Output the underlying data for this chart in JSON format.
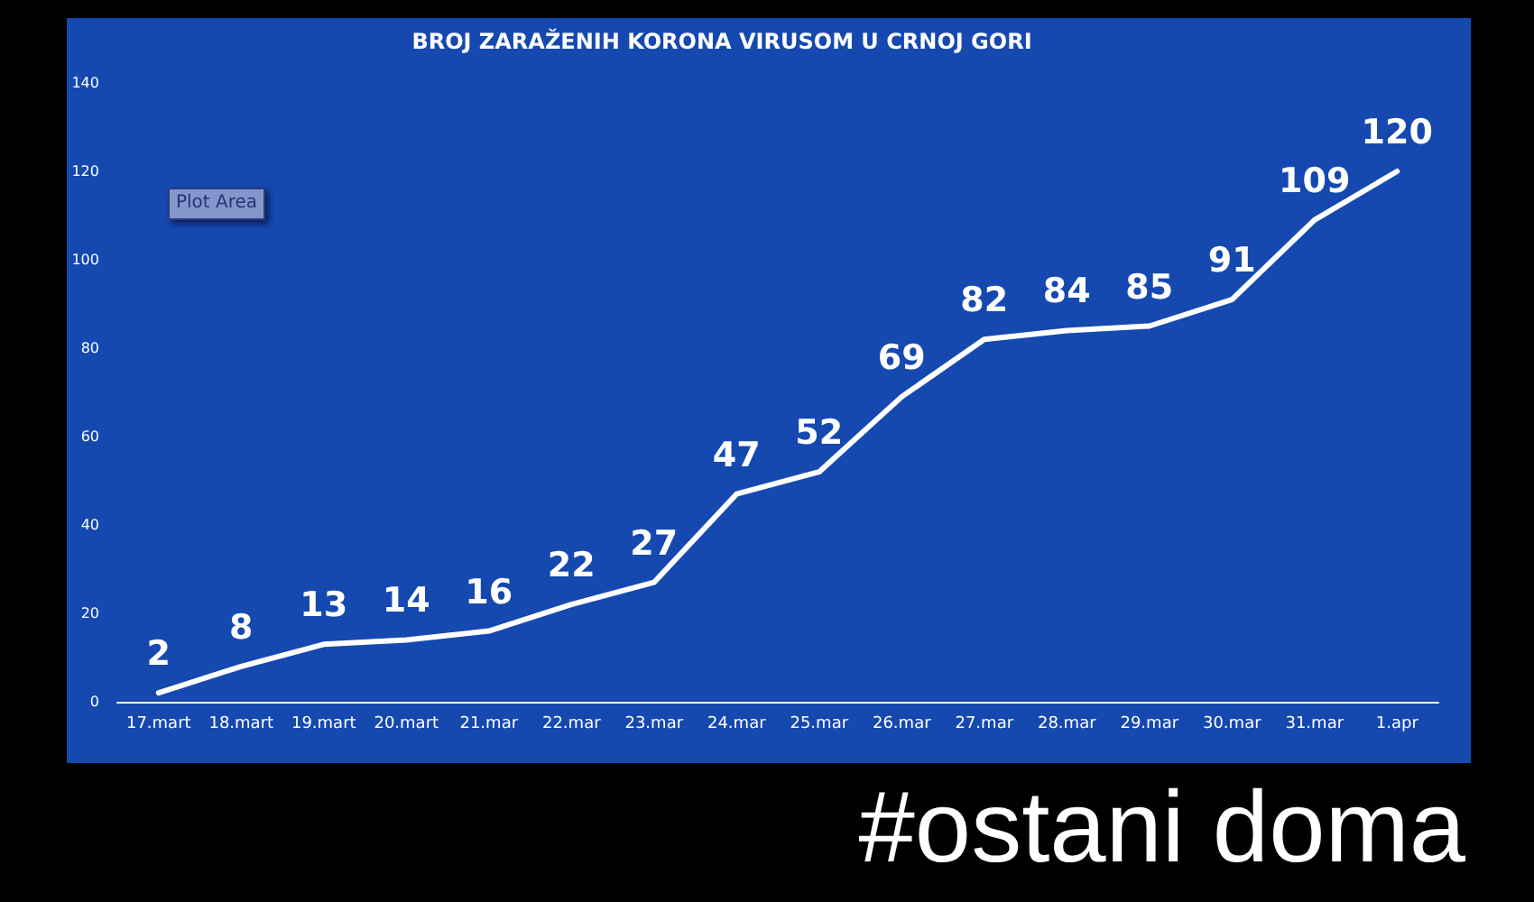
{
  "chart_data": {
    "type": "line",
    "title": "BROJ ZARAŽENIH KORONA VIRUSOM U CRNOJ GORI",
    "categories": [
      "17.mart",
      "18.mart",
      "19.mart",
      "20.mart",
      "21.mar",
      "22.mar",
      "23.mar",
      "24.mar",
      "25.mar",
      "26.mar",
      "27.mar",
      "28.mar",
      "29.mar",
      "30.mar",
      "31.mar",
      "1.apr"
    ],
    "series": [
      {
        "color": "#ffffff",
        "values": [
          2,
          8,
          13,
          14,
          16,
          22,
          27,
          47,
          52,
          69,
          82,
          84,
          85,
          91,
          109,
          120
        ]
      }
    ],
    "ylim": [
      0,
      140
    ],
    "yticks": [
      0,
      20,
      40,
      60,
      80,
      100,
      120,
      140
    ],
    "grid": false,
    "marker": "none",
    "data_labels": true,
    "annotations": [
      "Plot Area",
      "#ostani doma"
    ]
  }
}
